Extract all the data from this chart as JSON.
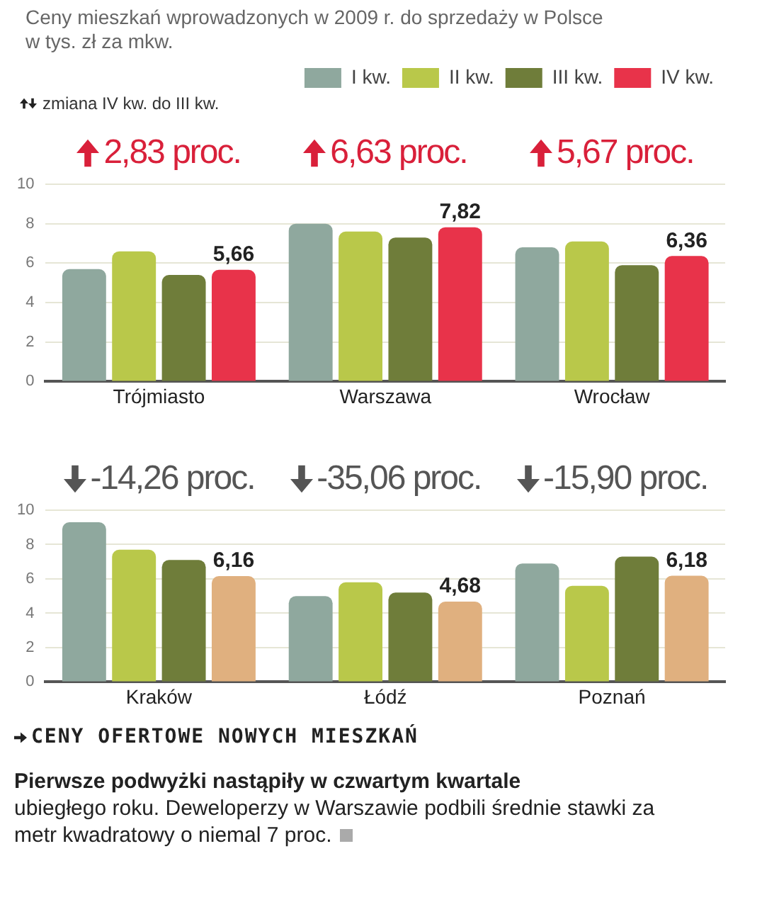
{
  "chart_data": [
    {
      "type": "bar",
      "title": "Ceny mieszkań wprowadzonych w 2009 r. do sprzedaży w Polsce",
      "subtitle": "w tys. zł za mkw.",
      "categories": [
        "Trójmiasto",
        "Warszawa",
        "Wrocław"
      ],
      "series": [
        {
          "name": "I kw.",
          "color": "#8fa89e",
          "values": [
            5.7,
            8.0,
            6.8
          ]
        },
        {
          "name": "II kw.",
          "color": "#b9c84a",
          "values": [
            6.6,
            7.6,
            7.1
          ]
        },
        {
          "name": "III kw.",
          "color": "#6f7d3a",
          "values": [
            5.4,
            7.3,
            5.9
          ]
        },
        {
          "name": "IV kw.",
          "color": "#e8334a",
          "values": [
            5.66,
            7.82,
            6.36
          ],
          "value_labels": [
            "5,66",
            "7,82",
            "6,36"
          ]
        }
      ],
      "ylim": [
        0,
        10
      ],
      "yticks": [
        0,
        2,
        4,
        6,
        8,
        10
      ],
      "grid": "y",
      "legend": "top right",
      "annotations": [
        "2,83 proc.",
        "6,63 proc.",
        "5,67 proc.",
        "zmiana IV kw. do III kw."
      ]
    },
    {
      "type": "bar",
      "categories": [
        "Kraków",
        "Łódź",
        "Poznań"
      ],
      "series": [
        {
          "color": "#8fa89e",
          "values": [
            9.3,
            5.0,
            6.9
          ]
        },
        {
          "color": "#b9c84a",
          "values": [
            7.7,
            5.8,
            5.6
          ]
        },
        {
          "color": "#6f7d3a",
          "values": [
            7.1,
            5.2,
            7.3
          ]
        },
        {
          "color": "#e0b07f",
          "values": [
            6.16,
            4.68,
            6.18
          ],
          "value_labels": [
            "6,16",
            "4,68",
            "6,18"
          ]
        }
      ],
      "ylim": [
        0,
        10
      ],
      "yticks": [
        0,
        2,
        4,
        6,
        8,
        10
      ],
      "grid": "y",
      "legend": false,
      "annotations": [
        "-14,26 proc.",
        "-35,06 proc.",
        "-15,90 proc.",
        "CENY OFERTOWE NOWYCH MIESZKAŃ",
        "Pierwsze podwyżki nastąpiły w czwartym kwartale",
        "ubiegłego roku. Deweloperzy w Warszawie podbili średnie stawki za metr kwadratowy o niemal 7 proc."
      ]
    }
  ]
}
